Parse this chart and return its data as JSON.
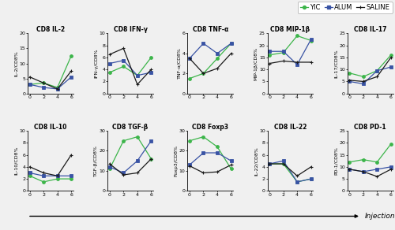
{
  "x_ticks": [
    0,
    2,
    4,
    6
  ],
  "x_tick_labels": [
    "0",
    "2",
    "4",
    "6"
  ],
  "colors": {
    "YIC": "#3cb54a",
    "ALUM": "#3953a4",
    "SALINE": "#1a1a1a"
  },
  "subplots": [
    {
      "title": "CD8 IL-2",
      "ylabel": "IL-2/CD8%",
      "ylim": [
        0,
        20
      ],
      "yticks": [
        0,
        5,
        10,
        15,
        20
      ],
      "YIC": [
        3.0,
        3.5,
        2.0,
        12.5
      ],
      "ALUM": [
        3.0,
        2.0,
        1.5,
        5.5
      ],
      "SALINE": [
        5.5,
        3.5,
        1.5,
        7.5
      ]
    },
    {
      "title": "CD8 IFN-γ",
      "ylabel": "IFN-γ/CD8%",
      "ylim": [
        0,
        10
      ],
      "yticks": [
        0,
        2,
        4,
        6,
        8,
        10
      ],
      "YIC": [
        3.5,
        4.5,
        3.0,
        6.0
      ],
      "ALUM": [
        5.0,
        5.5,
        3.0,
        3.5
      ],
      "SALINE": [
        6.5,
        7.5,
        1.5,
        4.0
      ]
    },
    {
      "title": "CD8 TNF-α",
      "ylabel": "TNF-α/CD8%",
      "ylim": [
        0,
        6
      ],
      "yticks": [
        0,
        2,
        4,
        6
      ],
      "YIC": [
        1.5,
        2.0,
        3.5,
        5.0
      ],
      "ALUM": [
        3.5,
        5.0,
        4.0,
        5.0
      ],
      "SALINE": [
        3.5,
        2.0,
        2.5,
        4.0
      ]
    },
    {
      "title": "CD8 MIP-1β",
      "ylabel": "MIP-1β/CD8%",
      "ylim": [
        0,
        25
      ],
      "yticks": [
        0,
        5,
        10,
        15,
        20,
        25
      ],
      "YIC": [
        16.0,
        17.0,
        24.0,
        22.0
      ],
      "ALUM": [
        17.5,
        17.5,
        12.0,
        22.5
      ],
      "SALINE": [
        12.5,
        13.5,
        13.0,
        13.0
      ]
    },
    {
      "title": "CD8 IL-17",
      "ylabel": "IL-17/CD8%",
      "ylim": [
        0,
        25
      ],
      "yticks": [
        0,
        5,
        10,
        15,
        20,
        25
      ],
      "YIC": [
        8.5,
        7.0,
        9.5,
        16.0
      ],
      "ALUM": [
        5.0,
        4.0,
        9.5,
        11.0
      ],
      "SALINE": [
        5.5,
        5.0,
        7.0,
        15.0
      ]
    },
    {
      "title": "CD8 IL-10",
      "ylabel": "IL-10/CD8%",
      "ylim": [
        0,
        10
      ],
      "yticks": [
        0,
        2,
        4,
        6,
        8,
        10
      ],
      "YIC": [
        2.5,
        1.5,
        2.0,
        2.0
      ],
      "ALUM": [
        3.0,
        2.5,
        2.5,
        2.5
      ],
      "SALINE": [
        4.0,
        3.0,
        2.5,
        6.0
      ]
    },
    {
      "title": "CD8 TGF-β",
      "ylabel": "TGF-β/CD8%",
      "ylim": [
        0,
        30
      ],
      "yticks": [
        0,
        10,
        20,
        30
      ],
      "YIC": [
        11.0,
        25.0,
        27.0,
        16.0
      ],
      "ALUM": [
        12.0,
        9.0,
        15.0,
        25.0
      ],
      "SALINE": [
        13.5,
        8.0,
        9.0,
        16.0
      ]
    },
    {
      "title": "CD8 Foxp3",
      "ylabel": "Foxp3/CD8%",
      "ylim": [
        0,
        30
      ],
      "yticks": [
        0,
        10,
        20,
        30
      ],
      "YIC": [
        25.0,
        27.0,
        22.0,
        11.0
      ],
      "ALUM": [
        13.0,
        19.0,
        19.0,
        15.0
      ],
      "SALINE": [
        12.5,
        9.0,
        9.5,
        13.0
      ]
    },
    {
      "title": "CD8 IL-22",
      "ylabel": "IL-22/CD8%",
      "ylim": [
        0,
        10
      ],
      "yticks": [
        0,
        2,
        4,
        6,
        8,
        10
      ],
      "YIC": [
        4.5,
        4.5,
        1.5,
        2.0
      ],
      "ALUM": [
        4.5,
        5.0,
        1.5,
        2.0
      ],
      "SALINE": [
        4.5,
        4.5,
        2.5,
        4.0
      ]
    },
    {
      "title": "CD8 PD-1",
      "ylabel": "PD-1/CD8%",
      "ylim": [
        0,
        25
      ],
      "yticks": [
        0,
        5,
        10,
        15,
        20,
        25
      ],
      "YIC": [
        12.0,
        13.0,
        12.0,
        19.5
      ],
      "ALUM": [
        9.0,
        8.0,
        9.0,
        10.0
      ],
      "SALINE": [
        9.0,
        8.0,
        6.0,
        9.0
      ]
    }
  ],
  "legend_labels": [
    "YIC",
    "ALUM",
    "SALINE"
  ],
  "injection_label": "Injection",
  "background_color": "#f0f0f0",
  "title_fontsize": 5.5,
  "label_fontsize": 4.5,
  "tick_fontsize": 4.5,
  "legend_fontsize": 6.0,
  "linewidth": 0.9,
  "markersize": 2.8
}
